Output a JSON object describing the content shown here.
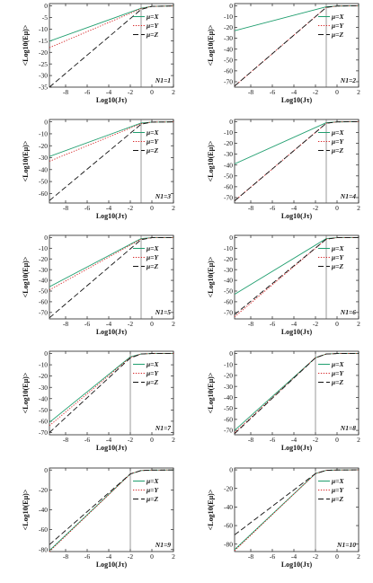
{
  "chart_data": [
    {
      "type": "line",
      "panel_label": "N1=1",
      "ylabel": "<Log10(Eμ)>",
      "xlabel": "Log10(Jτ)",
      "xlim": [
        -9.5,
        2
      ],
      "ylim": [
        -35,
        1
      ],
      "xticks": [
        -8,
        -6,
        -4,
        -2,
        0,
        2
      ],
      "yticks": [
        0,
        -5,
        -10,
        -15,
        -20,
        -25,
        -30,
        -35
      ],
      "vline_x": -1,
      "series": [
        {
          "name": "μ=X",
          "color": "#1f9e6e",
          "dash": "solid",
          "points": [
            [
              -9.5,
              -15.2
            ],
            [
              -1,
              -1
            ],
            [
              0,
              -0.2
            ],
            [
              2,
              0
            ]
          ]
        },
        {
          "name": "μ=Y",
          "color": "#d62728",
          "dash": "dot",
          "points": [
            [
              -9.5,
              -18
            ],
            [
              -1,
              -1.2
            ],
            [
              0,
              -0.2
            ],
            [
              2,
              0
            ]
          ]
        },
        {
          "name": "μ=Z",
          "color": "#111111",
          "dash": "longdash",
          "points": [
            [
              -9.5,
              -35
            ],
            [
              -1,
              -1.5
            ],
            [
              0,
              -0.2
            ],
            [
              2,
              0
            ]
          ]
        }
      ]
    },
    {
      "type": "line",
      "panel_label": "N1=2",
      "ylabel": "<Log10(Eμ)>",
      "xlabel": "Log10(Jτ)",
      "xlim": [
        -9.5,
        2
      ],
      "ylim": [
        -75,
        2
      ],
      "xticks": [
        -8,
        -6,
        -4,
        -2,
        0,
        2
      ],
      "yticks": [
        0,
        -10,
        -20,
        -30,
        -40,
        -50,
        -60,
        -70
      ],
      "vline_x": -1,
      "series": [
        {
          "name": "μ=X",
          "color": "#1f9e6e",
          "dash": "solid",
          "points": [
            [
              -9.5,
              -23
            ],
            [
              -1,
              -1
            ],
            [
              0,
              -0.2
            ],
            [
              2,
              0
            ]
          ]
        },
        {
          "name": "μ=Y",
          "color": "#d62728",
          "dash": "dot",
          "points": [
            [
              -9.5,
              -74
            ],
            [
              -1,
              -1.5
            ],
            [
              0,
              -0.2
            ],
            [
              2,
              0
            ]
          ]
        },
        {
          "name": "μ=Z",
          "color": "#111111",
          "dash": "longdash",
          "points": [
            [
              -9.5,
              -74
            ],
            [
              -1,
              -1.5
            ],
            [
              0,
              -0.2
            ],
            [
              2,
              0
            ]
          ]
        }
      ]
    },
    {
      "type": "line",
      "panel_label": "N1=3",
      "ylabel": "<Log10(Eμ)>",
      "xlabel": "Log10(Jτ)",
      "xlim": [
        -9.5,
        2
      ],
      "ylim": [
        -68,
        2
      ],
      "xticks": [
        -8,
        -6,
        -4,
        -2,
        0,
        2
      ],
      "yticks": [
        0,
        -10,
        -20,
        -30,
        -40,
        -50,
        -60
      ],
      "vline_x": -1,
      "series": [
        {
          "name": "μ=X",
          "color": "#1f9e6e",
          "dash": "solid",
          "points": [
            [
              -9.5,
              -29
            ],
            [
              -1,
              -1
            ],
            [
              0,
              -0.2
            ],
            [
              2,
              0
            ]
          ]
        },
        {
          "name": "μ=Y",
          "color": "#d62728",
          "dash": "dot",
          "points": [
            [
              -9.5,
              -33
            ],
            [
              -1,
              -1.5
            ],
            [
              0,
              -0.2
            ],
            [
              2,
              0
            ]
          ]
        },
        {
          "name": "μ=Z",
          "color": "#111111",
          "dash": "longdash",
          "points": [
            [
              -9.5,
              -66
            ],
            [
              -1,
              -2
            ],
            [
              0,
              -0.2
            ],
            [
              2,
              0
            ]
          ]
        }
      ]
    },
    {
      "type": "line",
      "panel_label": "N1=4",
      "ylabel": "<Log10(Eμ)>",
      "xlabel": "Log10(Jτ)",
      "xlim": [
        -9.5,
        2
      ],
      "ylim": [
        -75,
        2
      ],
      "xticks": [
        -8,
        -6,
        -4,
        -2,
        0,
        2
      ],
      "yticks": [
        0,
        -10,
        -20,
        -30,
        -40,
        -50,
        -60,
        -70
      ],
      "vline_x": -1,
      "series": [
        {
          "name": "μ=X",
          "color": "#1f9e6e",
          "dash": "solid",
          "points": [
            [
              -9.5,
              -39
            ],
            [
              -1,
              -1
            ],
            [
              0,
              -0.2
            ],
            [
              2,
              0
            ]
          ]
        },
        {
          "name": "μ=Y",
          "color": "#d62728",
          "dash": "dot",
          "points": [
            [
              -9.5,
              -73
            ],
            [
              -1,
              -1.5
            ],
            [
              0,
              -0.2
            ],
            [
              2,
              0
            ]
          ]
        },
        {
          "name": "μ=Z",
          "color": "#111111",
          "dash": "longdash",
          "points": [
            [
              -9.5,
              -73
            ],
            [
              -1,
              -1.5
            ],
            [
              0,
              -0.2
            ],
            [
              2,
              0
            ]
          ]
        }
      ]
    },
    {
      "type": "line",
      "panel_label": "N1=5",
      "ylabel": "<Log10(Eμ)>",
      "xlabel": "Log10(Jτ)",
      "xlim": [
        -9.5,
        2
      ],
      "ylim": [
        -76,
        2
      ],
      "xticks": [
        -8,
        -6,
        -4,
        -2,
        0,
        2
      ],
      "yticks": [
        0,
        -10,
        -20,
        -30,
        -40,
        -50,
        -60,
        -70
      ],
      "vline_x": -1,
      "series": [
        {
          "name": "μ=X",
          "color": "#1f9e6e",
          "dash": "solid",
          "points": [
            [
              -9.5,
              -46
            ],
            [
              -1,
              -1
            ],
            [
              0,
              -0.2
            ],
            [
              2,
              0
            ]
          ]
        },
        {
          "name": "μ=Y",
          "color": "#d62728",
          "dash": "dot",
          "points": [
            [
              -9.5,
              -49
            ],
            [
              -1,
              -1.5
            ],
            [
              0,
              -0.2
            ],
            [
              2,
              0
            ]
          ]
        },
        {
          "name": "μ=Z",
          "color": "#111111",
          "dash": "longdash",
          "points": [
            [
              -9.5,
              -75
            ],
            [
              -1,
              -2
            ],
            [
              0,
              -0.2
            ],
            [
              2,
              0
            ]
          ]
        }
      ]
    },
    {
      "type": "line",
      "panel_label": "N1=6",
      "ylabel": "<Log10(Eμ)>",
      "xlabel": "Log10(Jτ)",
      "xlim": [
        -9.5,
        2
      ],
      "ylim": [
        -76,
        2
      ],
      "xticks": [
        -8,
        -6,
        -4,
        -2,
        0,
        2
      ],
      "yticks": [
        0,
        -10,
        -20,
        -30,
        -40,
        -50,
        -60,
        -70
      ],
      "vline_x": -1,
      "series": [
        {
          "name": "μ=X",
          "color": "#1f9e6e",
          "dash": "solid",
          "points": [
            [
              -9.5,
              -53
            ],
            [
              -1,
              -1
            ],
            [
              0,
              -0.2
            ],
            [
              2,
              0
            ]
          ]
        },
        {
          "name": "μ=Y",
          "color": "#d62728",
          "dash": "dot",
          "points": [
            [
              -9.5,
              -74
            ],
            [
              -1,
              -1.5
            ],
            [
              0,
              -0.2
            ],
            [
              2,
              0
            ]
          ]
        },
        {
          "name": "μ=Z",
          "color": "#111111",
          "dash": "longdash",
          "points": [
            [
              -9.5,
              -72
            ],
            [
              -1,
              -1.5
            ],
            [
              0,
              -0.2
            ],
            [
              2,
              0
            ]
          ]
        }
      ]
    },
    {
      "type": "line",
      "panel_label": "N1=7",
      "ylabel": "<Log10(Eμ)>",
      "xlabel": "Log10(Jτ)",
      "xlim": [
        -9.5,
        2
      ],
      "ylim": [
        -72,
        2
      ],
      "xticks": [
        -8,
        -6,
        -4,
        -2,
        0,
        2
      ],
      "yticks": [
        0,
        -10,
        -20,
        -30,
        -40,
        -50,
        -60,
        -70
      ],
      "vline_x": -2,
      "series": [
        {
          "name": "μ=X",
          "color": "#1f9e6e",
          "dash": "solid",
          "points": [
            [
              -9.5,
              -61
            ],
            [
              -2,
              -3
            ],
            [
              -1,
              -0.5
            ],
            [
              0,
              -0.1
            ],
            [
              2,
              0
            ]
          ]
        },
        {
          "name": "μ=Y",
          "color": "#d62728",
          "dash": "dot",
          "points": [
            [
              -9.5,
              -64
            ],
            [
              -2,
              -3.5
            ],
            [
              -1,
              -0.5
            ],
            [
              0,
              -0.1
            ],
            [
              2,
              0
            ]
          ]
        },
        {
          "name": "μ=Z",
          "color": "#111111",
          "dash": "longdash",
          "points": [
            [
              -9.5,
              -70
            ],
            [
              -2,
              -4
            ],
            [
              -1,
              -0.5
            ],
            [
              0,
              -0.1
            ],
            [
              2,
              0
            ]
          ]
        }
      ]
    },
    {
      "type": "line",
      "panel_label": "N1=8",
      "ylabel": "<Log10(Eμ)>",
      "xlabel": "Log10(Jτ)",
      "xlim": [
        -9.5,
        2
      ],
      "ylim": [
        -74,
        2
      ],
      "xticks": [
        -8,
        -6,
        -4,
        -2,
        0,
        2
      ],
      "yticks": [
        0,
        -10,
        -20,
        -30,
        -40,
        -50,
        -60,
        -70
      ],
      "vline_x": -2,
      "series": [
        {
          "name": "μ=X",
          "color": "#1f9e6e",
          "dash": "solid",
          "points": [
            [
              -9.5,
              -70
            ],
            [
              -2,
              -4
            ],
            [
              -1,
              -0.5
            ],
            [
              0,
              -0.1
            ],
            [
              2,
              0
            ]
          ]
        },
        {
          "name": "μ=Y",
          "color": "#d62728",
          "dash": "dot",
          "points": [
            [
              -9.5,
              -72
            ],
            [
              -2,
              -4
            ],
            [
              -1,
              -0.5
            ],
            [
              0,
              -0.1
            ],
            [
              2,
              0
            ]
          ]
        },
        {
          "name": "μ=Z",
          "color": "#111111",
          "dash": "longdash",
          "points": [
            [
              -9.5,
              -73
            ],
            [
              -2,
              -4
            ],
            [
              -1,
              -0.5
            ],
            [
              0,
              -0.1
            ],
            [
              2,
              0
            ]
          ]
        }
      ]
    },
    {
      "type": "line",
      "panel_label": "N1=9",
      "ylabel": "<Log10(Eμ)>",
      "xlabel": "Log10(Jτ)",
      "xlim": [
        -9.5,
        2
      ],
      "ylim": [
        -82,
        2
      ],
      "xticks": [
        -8,
        -6,
        -4,
        -2,
        0,
        2
      ],
      "yticks": [
        0,
        -20,
        -40,
        -60,
        -80
      ],
      "vline_x": -2,
      "series": [
        {
          "name": "μ=X",
          "color": "#1f9e6e",
          "dash": "solid",
          "points": [
            [
              -9.5,
              -81
            ],
            [
              -2,
              -4
            ],
            [
              -1,
              -0.5
            ],
            [
              0,
              -0.1
            ],
            [
              2,
              0
            ]
          ]
        },
        {
          "name": "μ=Y",
          "color": "#d62728",
          "dash": "dot",
          "points": [
            [
              -9.5,
              -82
            ],
            [
              -2,
              -4
            ],
            [
              -1,
              -0.5
            ],
            [
              0,
              -0.1
            ],
            [
              2,
              0
            ]
          ]
        },
        {
          "name": "μ=Z",
          "color": "#111111",
          "dash": "longdash",
          "points": [
            [
              -9.5,
              -75
            ],
            [
              -2,
              -4
            ],
            [
              -1,
              -0.5
            ],
            [
              0,
              -0.1
            ],
            [
              2,
              0
            ]
          ]
        }
      ]
    },
    {
      "type": "line",
      "panel_label": "N1=10",
      "ylabel": "<Log10(Eμ)>",
      "xlabel": "Log10(Jτ)",
      "xlim": [
        -9.5,
        2
      ],
      "ylim": [
        -88,
        2
      ],
      "xticks": [
        -8,
        -6,
        -4,
        -2,
        0,
        2
      ],
      "yticks": [
        0,
        -20,
        -40,
        -60,
        -80
      ],
      "vline_x": -2,
      "series": [
        {
          "name": "μ=X",
          "color": "#1f9e6e",
          "dash": "solid",
          "points": [
            [
              -9.5,
              -86
            ],
            [
              -2,
              -4
            ],
            [
              -1,
              -0.5
            ],
            [
              0,
              -0.1
            ],
            [
              2,
              0
            ]
          ]
        },
        {
          "name": "μ=Y",
          "color": "#d62728",
          "dash": "dot",
          "points": [
            [
              -9.5,
              -87
            ],
            [
              -2,
              -4
            ],
            [
              -1,
              -0.5
            ],
            [
              0,
              -0.1
            ],
            [
              2,
              0
            ]
          ]
        },
        {
          "name": "μ=Z",
          "color": "#111111",
          "dash": "longdash",
          "points": [
            [
              -9.5,
              -70
            ],
            [
              -2,
              -4
            ],
            [
              -1,
              -0.5
            ],
            [
              0,
              -0.1
            ],
            [
              2,
              0
            ]
          ]
        }
      ]
    }
  ]
}
